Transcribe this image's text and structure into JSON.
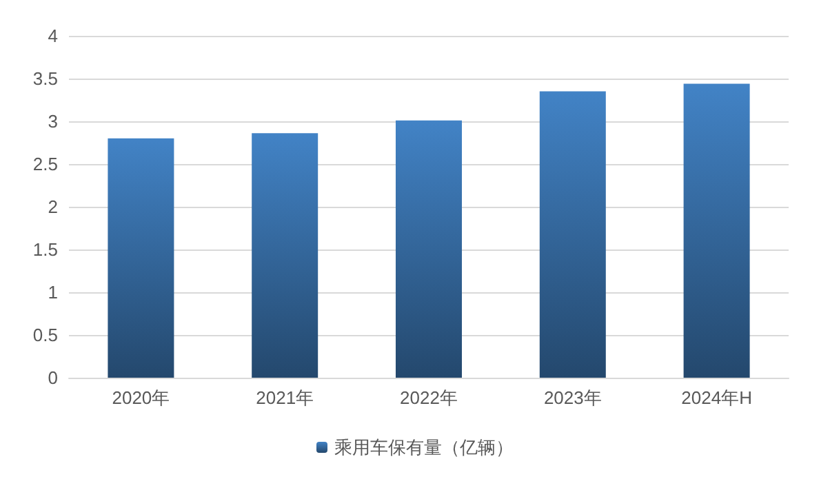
{
  "chart_data": {
    "type": "bar",
    "categories": [
      "2020年",
      "2021年",
      "2022年",
      "2023年",
      "2024年H"
    ],
    "series": [
      {
        "name": "乘用车保有量（亿辆）",
        "color": "#4283c6",
        "values": [
          2.8,
          2.86,
          3.01,
          3.35,
          3.44
        ]
      }
    ],
    "ylim": [
      0,
      4
    ],
    "yticks": [
      0,
      0.5,
      1,
      1.5,
      2,
      2.5,
      3,
      3.5,
      4
    ],
    "grid": "y",
    "legend": "bottom"
  }
}
